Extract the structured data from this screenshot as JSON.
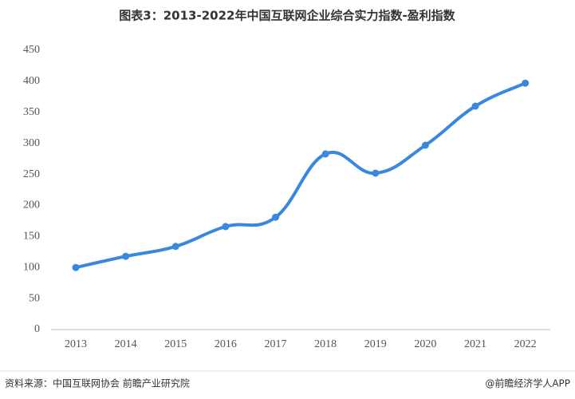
{
  "chart_data": {
    "type": "line",
    "title": "图表3：2013-2022年中国互联网企业综合实力指数-盈利指数",
    "categories": [
      "2013",
      "2014",
      "2015",
      "2016",
      "2017",
      "2018",
      "2019",
      "2020",
      "2021",
      "2022"
    ],
    "series": [
      {
        "name": "盈利指数",
        "color": "#3a87e0",
        "values": [
          100,
          118,
          134,
          166,
          181,
          283,
          252,
          297,
          360,
          397
        ]
      }
    ],
    "ylim": [
      0,
      450
    ],
    "yticks": [
      0,
      50,
      100,
      150,
      200,
      250,
      300,
      350,
      400,
      450
    ],
    "grid": false,
    "source": "资料来源：中国互联网协会 前瞻产业研究院",
    "credit": "@前瞻经济学人APP"
  }
}
